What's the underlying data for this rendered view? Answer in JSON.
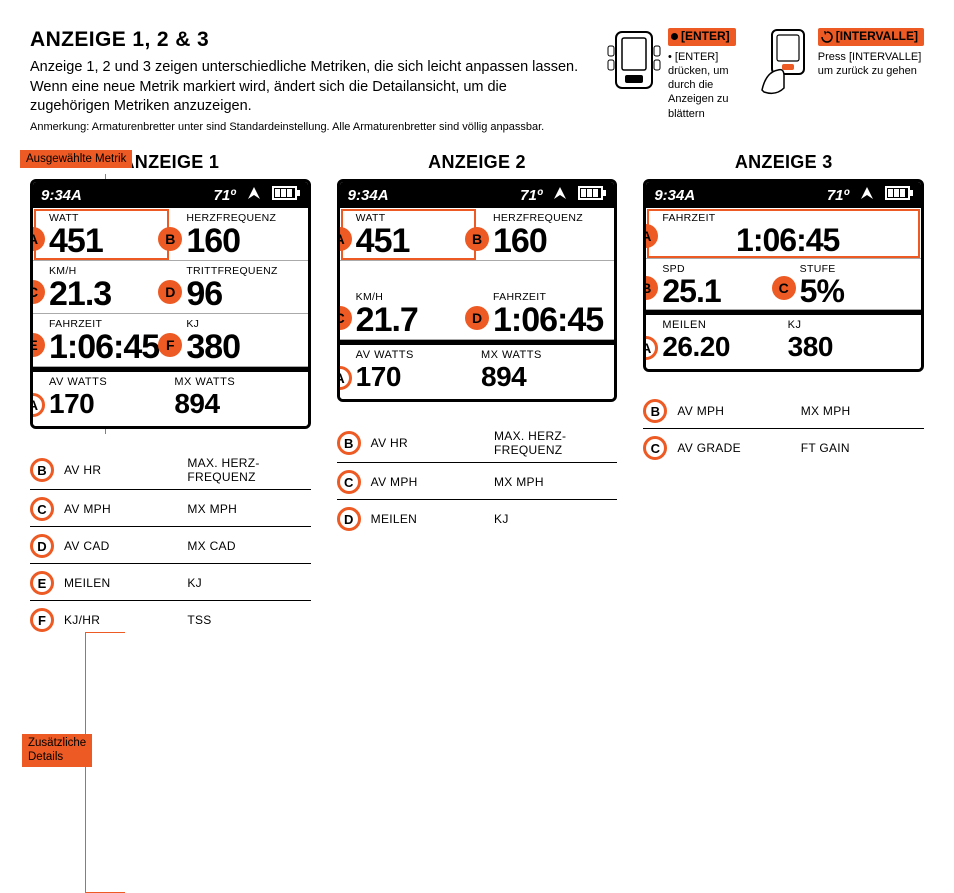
{
  "header": {
    "title": "ANZEIGE 1, 2 & 3",
    "desc": "Anzeige 1, 2 und 3 zeigen unterschiedliche Metriken, die sich leicht anpassen lassen. Wenn eine neue Metrik markiert wird, ändert sich die Detailansicht, um die zugehörigen Metriken anzuzeigen.",
    "note": "Anmerkung: Armaturenbretter unter sind Standardeinstellung. Alle Armaturenbretter sind völlig anpassbar."
  },
  "instructions": {
    "enter": {
      "button": "[ENTER]",
      "text": "• [ENTER] drücken, um durch die Anzeigen zu blättern"
    },
    "intervalle": {
      "button": "[INTERVALLE]",
      "text": "Press [INTERVALLE] um zurück zu gehen"
    }
  },
  "badges": {
    "selected": "Ausgewählte Metrik",
    "extra": "Zusätzliche\nDetails"
  },
  "colors": {
    "accent": "#ed5a23"
  },
  "status": {
    "time": "9:34A",
    "temp": "71º"
  },
  "displays": [
    {
      "title": "ANZEIGE 1",
      "cells": [
        {
          "letter": "A",
          "label": "WATT",
          "value": "451",
          "selected": true
        },
        {
          "letter": "B",
          "label": "HERZFREQUENZ",
          "value": "160"
        },
        {
          "letter": "C",
          "label": "KM/H",
          "value": "21.3"
        },
        {
          "letter": "D",
          "label": "TRITTFREQUENZ",
          "value": "96"
        },
        {
          "letter": "E",
          "label": "FAHRZEIT",
          "value": "1:06:45"
        },
        {
          "letter": "F",
          "label": "KJ",
          "value": "380"
        }
      ],
      "summary": {
        "letter": "A",
        "l1": "AV WATTS",
        "v1": "170",
        "l2": "MX WATTS",
        "v2": "894"
      },
      "details": [
        {
          "letter": "B",
          "c1": "AV HR",
          "c2": "MAX. HERZ-\nFREQUENZ"
        },
        {
          "letter": "C",
          "c1": "AV MPH",
          "c2": "MX MPH"
        },
        {
          "letter": "D",
          "c1": "AV CAD",
          "c2": "MX CAD"
        },
        {
          "letter": "E",
          "c1": "MEILEN",
          "c2": "KJ"
        },
        {
          "letter": "F",
          "c1": "KJ/HR",
          "c2": "TSS"
        }
      ]
    },
    {
      "title": "ANZEIGE 2",
      "cells": [
        {
          "letter": "A",
          "label": "WATT",
          "value": "451",
          "selected": true
        },
        {
          "letter": "B",
          "label": "HERZFREQUENZ",
          "value": "160"
        },
        {
          "letter": "C",
          "label": "KM/H",
          "value": "21.7"
        },
        {
          "letter": "D",
          "label": "FAHRZEIT",
          "value": "1:06:45"
        }
      ],
      "summary": {
        "letter": "A",
        "l1": "AV WATTS",
        "v1": "170",
        "l2": "MX WATTS",
        "v2": "894"
      },
      "details": [
        {
          "letter": "B",
          "c1": "AV HR",
          "c2": "MAX. HERZ-\nFREQUENZ"
        },
        {
          "letter": "C",
          "c1": "AV MPH",
          "c2": "MX MPH"
        },
        {
          "letter": "D",
          "c1": "MEILEN",
          "c2": "KJ"
        }
      ]
    },
    {
      "title": "ANZEIGE 3",
      "bigcell": {
        "letter": "A",
        "label": "FAHRZEIT",
        "value": "1:06:45",
        "selected": true
      },
      "cells": [
        {
          "letter": "B",
          "label": "SPD",
          "value": "25.1"
        },
        {
          "letter": "C",
          "label": "STUFE",
          "value": "5%"
        }
      ],
      "summary": {
        "letter": "A",
        "l1": "MEILEN",
        "v1": "26.20",
        "l2": "KJ",
        "v2": "380"
      },
      "details": [
        {
          "letter": "B",
          "c1": "AV MPH",
          "c2": "MX MPH"
        },
        {
          "letter": "C",
          "c1": "AV GRADE",
          "c2": "FT GAIN"
        }
      ]
    }
  ]
}
